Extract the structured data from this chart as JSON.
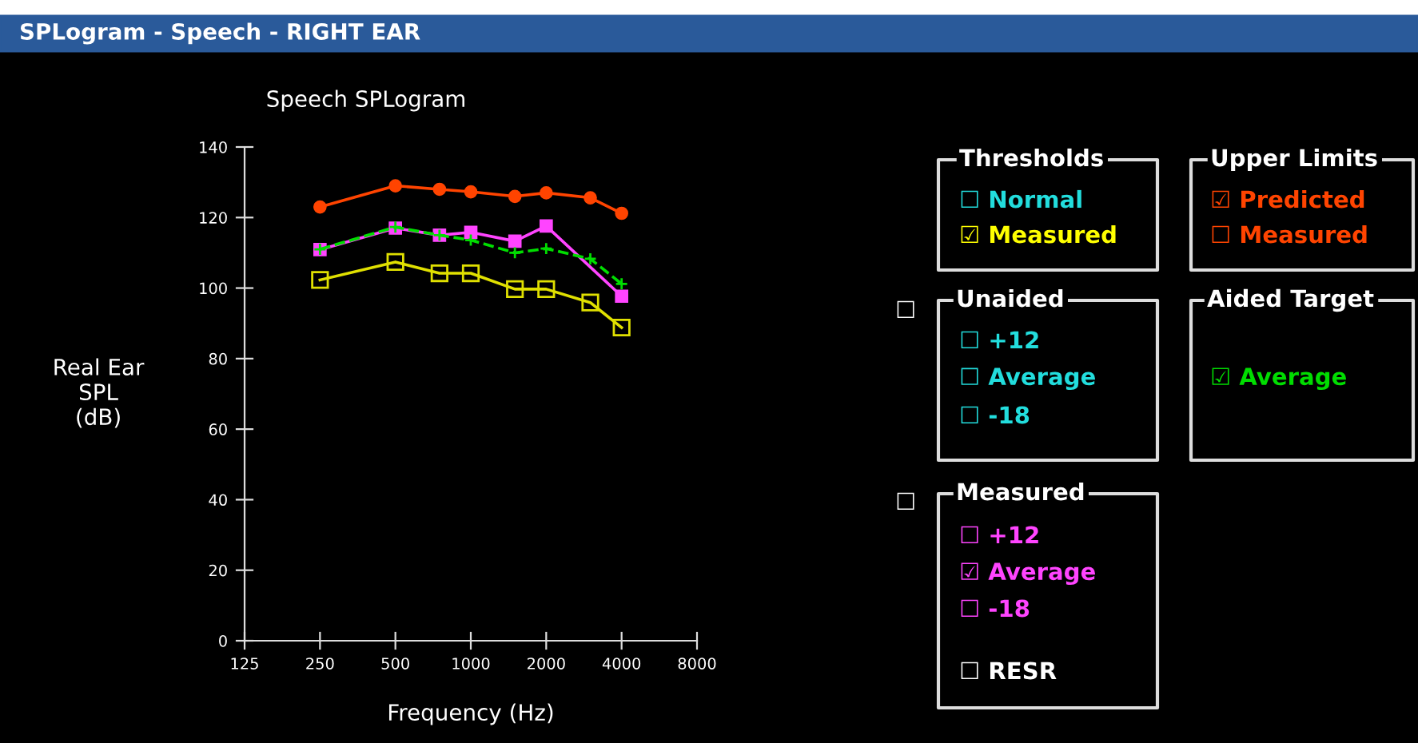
{
  "chart_data": [
    {
      "type": "line",
      "title": "SPLogram - Speech - RIGHT EAR",
      "subtitle": "Speech SPLogram",
      "xlabel": "Frequency (Hz)",
      "ylabel": "Real Ear\nSPL\n(dB)",
      "log": "x",
      "xlim": [
        125,
        8000
      ],
      "xticks": [
        125,
        250,
        500,
        1000,
        2000,
        4000,
        8000
      ],
      "ylim": [
        0,
        140
      ],
      "yticks": [
        0,
        20,
        40,
        60,
        80,
        100,
        120,
        140
      ],
      "grid": false,
      "series": [
        {
          "color": "#ff4400",
          "marker": "circle",
          "line_style": "solid",
          "x": [
            250,
            500,
            750,
            1000,
            1500,
            2000,
            3000,
            4000
          ],
          "values": [
            123,
            129,
            128,
            127.3,
            126,
            127,
            125.6,
            121.2
          ]
        },
        {
          "color": "#ff44ff",
          "marker": "square",
          "line_style": "solid",
          "x": [
            250,
            500,
            750,
            1000,
            1500,
            2000,
            4000
          ],
          "values": [
            110.9,
            117,
            115,
            115.8,
            113.3,
            117.6,
            97.7
          ]
        },
        {
          "color": "#00dd00",
          "marker": "cross",
          "line_style": "dashed",
          "x": [
            250,
            500,
            750,
            1000,
            1500,
            2000,
            3000,
            4000
          ],
          "values": [
            111,
            117.3,
            115,
            113.6,
            110,
            111.2,
            108.3,
            101.2
          ]
        },
        {
          "color": "#e0e000",
          "marker": "square",
          "line_style": "solid",
          "x": [
            250,
            500,
            750,
            1000,
            1500,
            2000,
            3000,
            4000
          ],
          "values": [
            102.3,
            107.4,
            104.2,
            104.2,
            99.7,
            99.7,
            95.9,
            88.8
          ]
        }
      ]
    },
    {
      "type": "other",
      "annotations": [
        "Thresholds",
        "☐ Normal",
        "☑ Measured",
        "Upper Limits",
        "☑ Predicted",
        "☐ Measured",
        "☐",
        "Unaided",
        "☐ +12",
        "☐ Average",
        "☐ -18",
        "Aided Target",
        "☑ Average",
        "☐",
        "Measured",
        "☐ +12",
        "☑ Average",
        "☐ -18",
        "☐ RESR"
      ],
      "colors": [
        "#ffffff",
        "#22dddd",
        "#ffff00",
        "#ffffff",
        "#ff4400",
        "#ff4400",
        "#ffffff",
        "#ffffff",
        "#22dddd",
        "#22dddd",
        "#22dddd",
        "#ffffff",
        "#00dd00",
        "#ffffff",
        "#ffffff",
        "#ff44ff",
        "#ff44ff",
        "#ff44ff",
        "#ffffff"
      ]
    }
  ]
}
